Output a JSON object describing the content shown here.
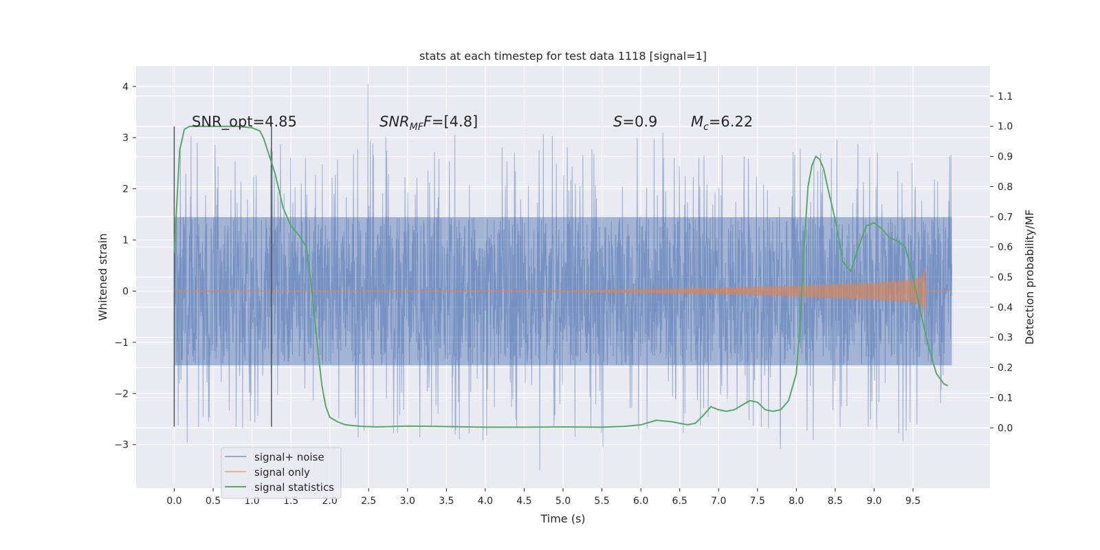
{
  "chart_data": {
    "type": "line",
    "title": "stats at each timestep for test data 1118 [signal=1]",
    "xlabel": "Time (s)",
    "ylabel": "Whitened strain",
    "y2label": "Detection probability/MF",
    "xlim": [
      -0.49,
      10.49
    ],
    "ylim": [
      -3.85,
      4.4
    ],
    "y2lim": [
      -0.2,
      1.2
    ],
    "x_ticks": [
      "0.0",
      "0.5",
      "1.0",
      "1.5",
      "2.0",
      "2.5",
      "3.0",
      "3.5",
      "4.0",
      "4.5",
      "5.0",
      "5.5",
      "6.0",
      "6.5",
      "7.0",
      "7.5",
      "8.0",
      "8.5",
      "9.0",
      "9.5"
    ],
    "y_ticks": [
      "−3",
      "−2",
      "−1",
      "0",
      "1",
      "2",
      "3",
      "4"
    ],
    "y2_ticks": [
      "0.0",
      "0.1",
      "0.2",
      "0.3",
      "0.4",
      "0.5",
      "0.6",
      "0.7",
      "0.8",
      "0.9",
      "1.0",
      "1.1"
    ],
    "grid": true,
    "legend_position": "lower-left",
    "legend": [
      "signal+ noise",
      "signal only",
      "signal statistics"
    ],
    "colors": {
      "noise": "#4c72b0",
      "signal": "#dd8452",
      "stats": "#55a868",
      "background": "#eaeaf2",
      "grid": "#ffffff",
      "vline": "#555555"
    },
    "annotations": {
      "snr_opt": "SNR_opt=4.85",
      "snr_mf_prefix": "SNR",
      "snr_mf_sub": "MF",
      "snr_mf_value": "=[4.8]",
      "s_symbol": "S",
      "s_value": "=0.9",
      "mc_symbol": "M",
      "mc_sub": "c",
      "mc_value": "=6.22"
    },
    "vertical_lines_x": [
      0.0,
      1.25
    ],
    "series": [
      {
        "name": "signal+ noise",
        "axis": "left",
        "x_range": [
          0.0,
          10.0
        ],
        "band": [
          -1.45,
          1.45
        ],
        "typical_peak": 2.4,
        "max": 4.05,
        "min": -3.5
      },
      {
        "name": "signal only",
        "axis": "left",
        "x": [
          0.0,
          5.0,
          6.0,
          7.0,
          8.0,
          8.5,
          9.0,
          9.5,
          9.62,
          9.65,
          9.67,
          10.0
        ],
        "envelope": [
          0.0,
          0.005,
          0.03,
          0.06,
          0.1,
          0.13,
          0.16,
          0.21,
          0.28,
          0.45,
          0.0,
          0.0
        ]
      },
      {
        "name": "signal statistics",
        "axis": "right",
        "x": [
          0.0,
          0.07,
          0.13,
          0.2,
          0.3,
          0.5,
          0.8,
          1.0,
          1.1,
          1.15,
          1.2,
          1.3,
          1.4,
          1.5,
          1.6,
          1.7,
          1.75,
          1.8,
          1.85,
          1.9,
          1.95,
          2.0,
          2.1,
          2.2,
          2.4,
          2.6,
          3.0,
          3.5,
          4.0,
          4.5,
          5.0,
          5.5,
          5.8,
          6.0,
          6.2,
          6.4,
          6.6,
          6.7,
          6.8,
          6.9,
          7.0,
          7.1,
          7.2,
          7.3,
          7.4,
          7.5,
          7.6,
          7.7,
          7.8,
          7.9,
          8.0,
          8.05,
          8.1,
          8.15,
          8.2,
          8.25,
          8.3,
          8.35,
          8.4,
          8.5,
          8.6,
          8.7,
          8.8,
          8.9,
          9.0,
          9.1,
          9.2,
          9.3,
          9.4,
          9.5,
          9.6,
          9.7,
          9.8,
          9.9,
          9.95
        ],
        "values": [
          0.58,
          0.92,
          0.99,
          1.0,
          1.0,
          1.0,
          1.0,
          0.995,
          0.985,
          0.96,
          0.92,
          0.84,
          0.73,
          0.67,
          0.64,
          0.6,
          0.5,
          0.38,
          0.25,
          0.14,
          0.07,
          0.035,
          0.02,
          0.01,
          0.005,
          0.003,
          0.006,
          0.004,
          0.002,
          0.002,
          0.003,
          0.002,
          0.005,
          0.01,
          0.025,
          0.02,
          0.01,
          0.015,
          0.04,
          0.07,
          0.06,
          0.055,
          0.06,
          0.075,
          0.09,
          0.085,
          0.06,
          0.055,
          0.06,
          0.09,
          0.18,
          0.35,
          0.6,
          0.8,
          0.87,
          0.9,
          0.89,
          0.86,
          0.8,
          0.69,
          0.55,
          0.52,
          0.6,
          0.67,
          0.68,
          0.66,
          0.63,
          0.62,
          0.6,
          0.5,
          0.38,
          0.27,
          0.18,
          0.145,
          0.14
        ]
      }
    ]
  }
}
